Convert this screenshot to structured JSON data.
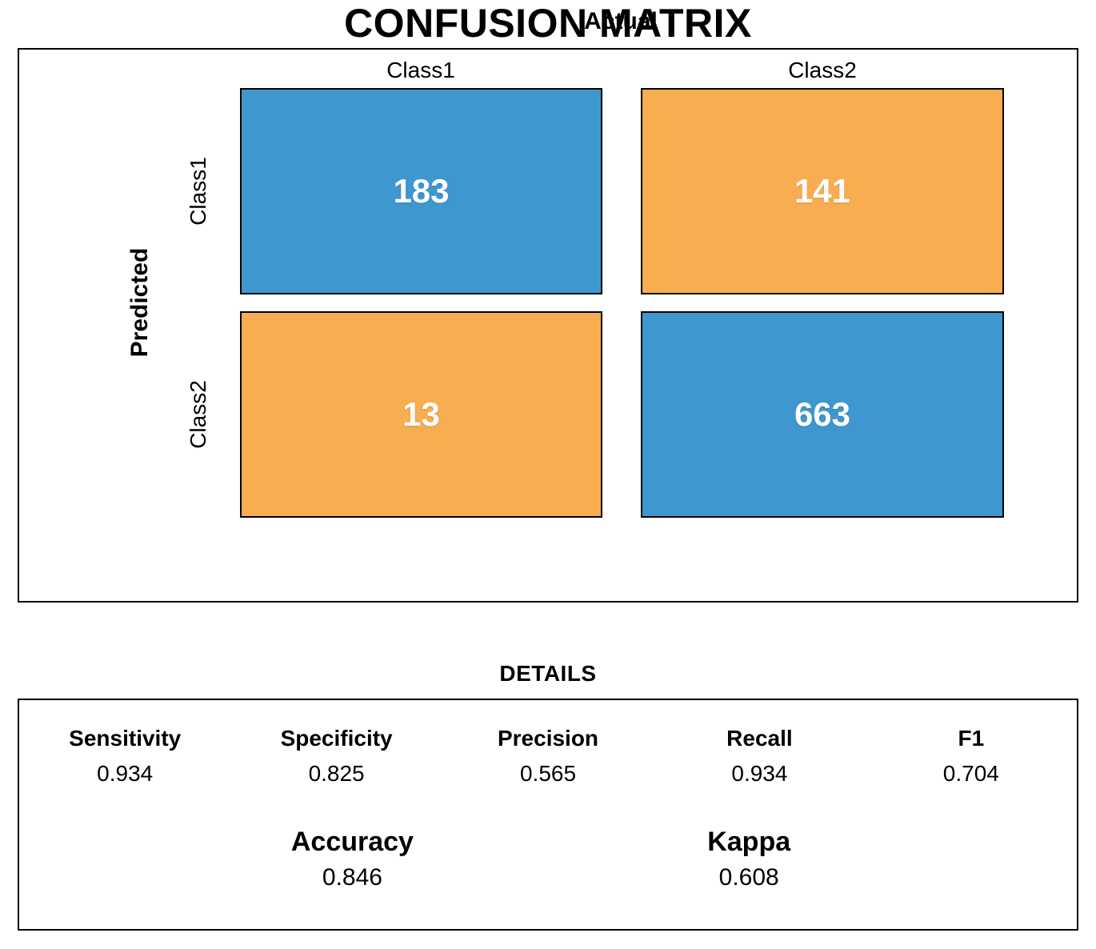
{
  "page_title": "CONFUSION MATRIX",
  "colors": {
    "match_cell": "#3F97D0",
    "mismatch_cell": "#F7AD50",
    "cell_text": "#FFFFFF",
    "panel_border": "#000000"
  },
  "matrix_panel": {
    "top_axis_label": "Actual",
    "left_axis_label": "Predicted",
    "actual_class_labels": [
      "Class1",
      "Class2"
    ],
    "predicted_class_labels": [
      "Class1",
      "Class2"
    ]
  },
  "details_panel": {
    "heading": "DETAILS",
    "metrics": [
      {
        "label": "Sensitivity",
        "value": "0.934"
      },
      {
        "label": "Specificity",
        "value": "0.825"
      },
      {
        "label": "Precision",
        "value": "0.565"
      },
      {
        "label": "Recall",
        "value": "0.934"
      },
      {
        "label": "F1",
        "value": "0.704"
      }
    ],
    "overall_metrics": [
      {
        "label": "Accuracy",
        "value": "0.846"
      },
      {
        "label": "Kappa",
        "value": "0.608"
      }
    ]
  },
  "chart_data": {
    "type": "heatmap",
    "title": "CONFUSION MATRIX",
    "xlabel": "Actual",
    "ylabel": "Predicted",
    "x_categories": [
      "Class1",
      "Class2"
    ],
    "y_categories": [
      "Class1",
      "Class2"
    ],
    "values": [
      [
        183,
        141
      ],
      [
        13,
        663
      ]
    ],
    "cell_colors": [
      [
        "#3F97D0",
        "#F7AD50"
      ],
      [
        "#F7AD50",
        "#3F97D0"
      ]
    ],
    "annotations": {
      "Sensitivity": 0.934,
      "Specificity": 0.825,
      "Precision": 0.565,
      "Recall": 0.934,
      "F1": 0.704,
      "Accuracy": 0.846,
      "Kappa": 0.608
    },
    "legend": "none",
    "grid": false
  }
}
